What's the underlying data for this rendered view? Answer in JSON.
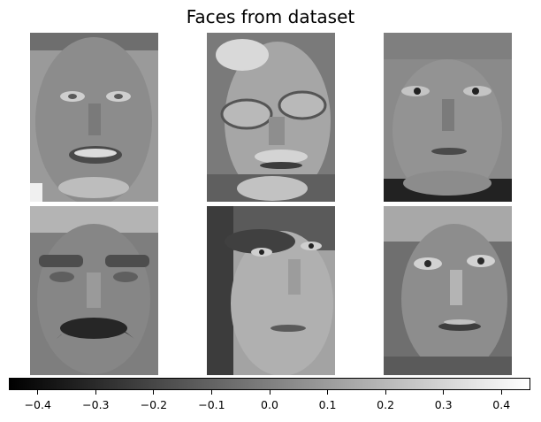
{
  "chart_data": {
    "type": "image-grid",
    "title": "Faces from dataset",
    "rows": 2,
    "cols": 3,
    "images": [
      {
        "id": "face-1",
        "description": "older man smiling, light hair"
      },
      {
        "id": "face-2",
        "description": "older man with glasses and mustache"
      },
      {
        "id": "face-3",
        "description": "young man, neutral expression"
      },
      {
        "id": "face-4",
        "description": "man with dark eyebrows and thick mustache (eigenface-like)"
      },
      {
        "id": "face-5",
        "description": "woman looking to the side, dark hair"
      },
      {
        "id": "face-6",
        "description": "woman with lined face"
      }
    ],
    "colorbar": {
      "colormap": "gray",
      "range": [
        -0.45,
        0.45
      ],
      "ticks": [
        "−0.4",
        "−0.3",
        "−0.2",
        "−0.1",
        "0.0",
        "0.1",
        "0.2",
        "0.3",
        "0.4"
      ],
      "tick_values": [
        -0.4,
        -0.3,
        -0.2,
        -0.1,
        0.0,
        0.1,
        0.2,
        0.3,
        0.4
      ]
    }
  }
}
